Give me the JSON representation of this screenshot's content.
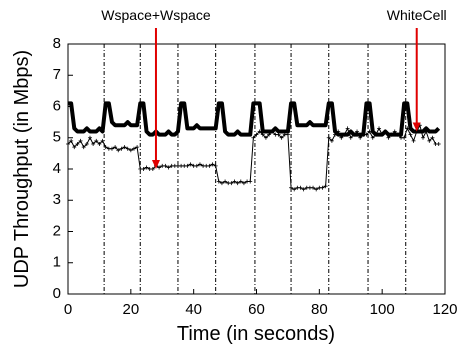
{
  "chart_data": {
    "type": "line",
    "xlabel": "Time (in seconds)",
    "ylabel": "UDP Throughput (in Mbps)",
    "xlim": [
      0,
      120
    ],
    "xticks": [
      0,
      20,
      40,
      60,
      80,
      100,
      120
    ],
    "ylim": [
      0,
      8
    ],
    "yticks": [
      0,
      1,
      2,
      3,
      4,
      5,
      6,
      7,
      8
    ],
    "vlines": [
      11.5,
      23,
      35,
      47,
      59.5,
      71,
      83,
      95.5,
      107.5
    ],
    "x": [
      0,
      1,
      2,
      3,
      4,
      5,
      6,
      7,
      8,
      9,
      10,
      11,
      12,
      13,
      14,
      15,
      16,
      17,
      18,
      19,
      20,
      21,
      22,
      23,
      24,
      25,
      26,
      27,
      28,
      29,
      30,
      31,
      32,
      33,
      34,
      35,
      36,
      37,
      38,
      39,
      40,
      41,
      42,
      43,
      44,
      45,
      46,
      47,
      48,
      49,
      50,
      51,
      52,
      53,
      54,
      55,
      56,
      57,
      58,
      59,
      60,
      61,
      62,
      63,
      64,
      65,
      66,
      67,
      68,
      69,
      70,
      71,
      72,
      73,
      74,
      75,
      76,
      77,
      78,
      79,
      80,
      81,
      82,
      83,
      84,
      85,
      86,
      87,
      88,
      89,
      90,
      91,
      92,
      93,
      94,
      95,
      96,
      97,
      98,
      99,
      100,
      101,
      102,
      103,
      104,
      105,
      106,
      107,
      108,
      109,
      110,
      111,
      112,
      113,
      114,
      115,
      116,
      117,
      118
    ],
    "series": [
      {
        "color": "#000000",
        "width": 4,
        "markers": false,
        "values": [
          6.1,
          6.1,
          5.3,
          5.2,
          5.2,
          5.2,
          5.3,
          5.2,
          5.2,
          5.2,
          5.3,
          5.2,
          6.1,
          6.1,
          5.5,
          5.4,
          5.4,
          5.4,
          5.4,
          5.5,
          5.4,
          5.4,
          5.4,
          6.1,
          6.1,
          5.2,
          5.1,
          5.1,
          5.2,
          5.1,
          5.1,
          5.1,
          5.2,
          5.1,
          5.1,
          5.2,
          6.1,
          6.1,
          5.3,
          5.3,
          5.3,
          5.4,
          5.3,
          5.3,
          5.3,
          5.3,
          5.3,
          5.3,
          6.1,
          6.1,
          5.2,
          5.1,
          5.1,
          5.1,
          5.2,
          5.1,
          5.1,
          5.1,
          5.1,
          6.1,
          6.1,
          6.1,
          5.2,
          5.2,
          5.2,
          5.2,
          5.3,
          5.2,
          5.2,
          5.2,
          5.2,
          6.1,
          6.1,
          5.4,
          5.4,
          5.4,
          5.4,
          5.5,
          5.4,
          5.4,
          5.4,
          5.4,
          5.4,
          6.1,
          6.1,
          5.2,
          5.1,
          5.1,
          5.1,
          5.1,
          5.2,
          5.1,
          5.1,
          5.1,
          5.1,
          6.1,
          6.1,
          5.2,
          5.1,
          5.1,
          5.1,
          5.2,
          5.1,
          5.1,
          5.1,
          5.1,
          5.1,
          6.1,
          6.1,
          5.3,
          5.2,
          5.2,
          5.2,
          5.2,
          5.3,
          5.2,
          5.2,
          5.2,
          5.3
        ]
      },
      {
        "color": "#000000",
        "width": 1,
        "markers": true,
        "values": [
          4.8,
          4.9,
          4.7,
          4.8,
          4.9,
          4.7,
          4.8,
          5.0,
          4.8,
          4.9,
          4.8,
          4.9,
          4.7,
          4.65,
          4.65,
          4.7,
          4.6,
          4.65,
          4.7,
          4.65,
          4.6,
          4.65,
          4.7,
          4.0,
          4.0,
          4.05,
          4.0,
          4.0,
          4.1,
          4.05,
          4.1,
          4.1,
          4.05,
          4.1,
          4.1,
          4.1,
          4.1,
          4.1,
          4.1,
          4.15,
          4.1,
          4.1,
          4.15,
          4.1,
          4.1,
          4.1,
          4.15,
          4.1,
          3.6,
          3.55,
          3.6,
          3.55,
          3.55,
          3.6,
          3.55,
          3.6,
          3.55,
          3.6,
          3.6,
          5.0,
          5.1,
          5.2,
          5.1,
          5.0,
          5.1,
          5.2,
          5.1,
          5.1,
          5.0,
          5.1,
          5.1,
          3.4,
          3.35,
          3.4,
          3.4,
          3.35,
          3.4,
          3.4,
          3.4,
          3.35,
          3.4,
          3.4,
          3.45,
          5.0,
          4.9,
          5.1,
          5.2,
          5.0,
          5.1,
          5.3,
          5.0,
          5.1,
          5.2,
          5.0,
          5.1,
          5.1,
          5.2,
          5.0,
          5.1,
          5.3,
          5.1,
          5.2,
          5.0,
          5.1,
          5.2,
          5.1,
          5.0,
          5.0,
          5.3,
          5.1,
          4.9,
          5.2,
          5.4,
          5.0,
          5.2,
          4.9,
          5.0,
          4.8,
          4.8
        ]
      }
    ],
    "annotations": [
      {
        "text": "Wspace+Wspace",
        "x": 28,
        "y": 4.0,
        "color": "#e00000"
      },
      {
        "text": "WhiteCell",
        "x": 111,
        "y": 5.2,
        "color": "#e00000"
      }
    ]
  }
}
